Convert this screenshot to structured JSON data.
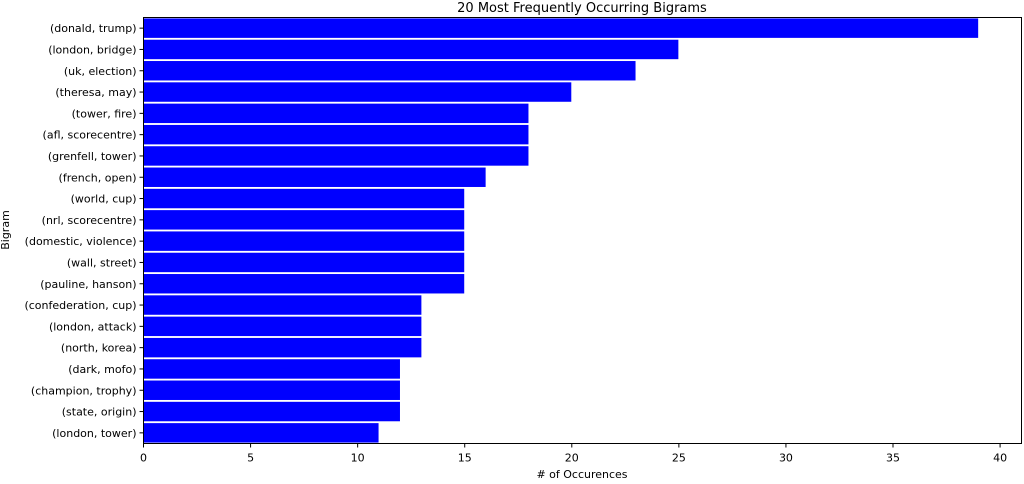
{
  "chart_data": {
    "type": "bar",
    "orientation": "horizontal",
    "title": "20 Most Frequently Occurring Bigrams",
    "xlabel": "# of Occurences",
    "ylabel": "Bigram",
    "xlim": [
      0,
      41
    ],
    "xticks": [
      0,
      5,
      10,
      15,
      20,
      25,
      30,
      35,
      40
    ],
    "grid": false,
    "bar_color": "#0000ff",
    "categories": [
      "(donald, trump)",
      "(london, bridge)",
      "(uk, election)",
      "(theresa, may)",
      "(tower, fire)",
      "(afl, scorecentre)",
      "(grenfell, tower)",
      "(french, open)",
      "(world, cup)",
      "(nrl, scorecentre)",
      "(domestic, violence)",
      "(wall, street)",
      "(pauline, hanson)",
      "(confederation, cup)",
      "(london, attack)",
      "(north, korea)",
      "(dark, mofo)",
      "(champion, trophy)",
      "(state, origin)",
      "(london, tower)"
    ],
    "values": [
      39,
      25,
      23,
      20,
      18,
      18,
      18,
      16,
      15,
      15,
      15,
      15,
      15,
      13,
      13,
      13,
      12,
      12,
      12,
      11
    ]
  }
}
